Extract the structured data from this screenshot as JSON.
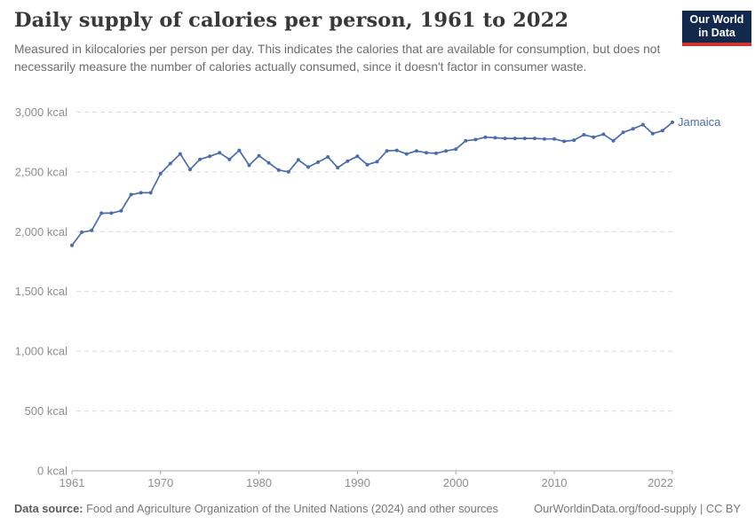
{
  "header": {
    "title": "Daily supply of calories per person, 1961 to 2022",
    "subtitle": "Measured in kilocalories per person per day. This indicates the calories that are available for consumption, but does not necessarily measure the number of calories actually consumed, since it doesn't factor in consumer waste."
  },
  "logo": {
    "line1": "Our World",
    "line2": "in Data"
  },
  "colors": {
    "series_line": "#4a6daa",
    "entity_label": "#4d6dab",
    "logo_navy": "#12294B",
    "logo_red": "#D0342C",
    "gridline": "#dadada",
    "axis_line": "#a8a8a8",
    "axis_text": "#8f8f8f"
  },
  "chart_data": {
    "type": "line",
    "title": "Daily supply of calories per person, 1961 to 2022",
    "xlabel": "",
    "ylabel": "",
    "unit": "kcal",
    "grid": true,
    "legend_position": "line-end-label",
    "xlim": [
      1961,
      2022
    ],
    "ylim": [
      0,
      3000
    ],
    "xtick_values": [
      1961,
      1970,
      1980,
      1990,
      2000,
      2010,
      2022
    ],
    "xtick_labels": [
      "1961",
      "1970",
      "1980",
      "1990",
      "2000",
      "2010",
      "2022"
    ],
    "ytick_values": [
      0,
      500,
      1000,
      1500,
      2000,
      2500,
      3000
    ],
    "ytick_labels": [
      "0 kcal",
      "500 kcal",
      "1,000 kcal",
      "1,500 kcal",
      "2,000 kcal",
      "2,500 kcal",
      "3,000 kcal"
    ],
    "series": [
      {
        "name": "Jamaica",
        "years": [
          1961,
          1962,
          1963,
          1964,
          1965,
          1966,
          1967,
          1968,
          1969,
          1970,
          1971,
          1972,
          1973,
          1974,
          1975,
          1976,
          1977,
          1978,
          1979,
          1980,
          1981,
          1982,
          1983,
          1984,
          1985,
          1986,
          1987,
          1988,
          1989,
          1990,
          1991,
          1992,
          1993,
          1994,
          1995,
          1996,
          1997,
          1998,
          1999,
          2000,
          2001,
          2002,
          2003,
          2004,
          2005,
          2006,
          2007,
          2008,
          2009,
          2010,
          2011,
          2012,
          2013,
          2014,
          2015,
          2016,
          2017,
          2018,
          2019,
          2020,
          2021,
          2022
        ],
        "values": [
          1885,
          1995,
          2010,
          2155,
          2155,
          2175,
          2310,
          2325,
          2325,
          2485,
          2570,
          2650,
          2520,
          2605,
          2630,
          2660,
          2605,
          2680,
          2555,
          2635,
          2575,
          2515,
          2500,
          2600,
          2540,
          2580,
          2625,
          2535,
          2590,
          2630,
          2560,
          2585,
          2675,
          2680,
          2650,
          2675,
          2660,
          2655,
          2675,
          2690,
          2760,
          2770,
          2790,
          2785,
          2780,
          2780,
          2780,
          2780,
          2775,
          2775,
          2755,
          2765,
          2810,
          2790,
          2815,
          2760,
          2830,
          2860,
          2895,
          2820,
          2845,
          2915
        ]
      }
    ]
  },
  "footer": {
    "source_label": "Data source:",
    "source_text": " Food and Agriculture Organization of the United Nations (2024) and other sources",
    "url": "OurWorldinData.org/food-supply",
    "separator": " | ",
    "license": "CC BY"
  }
}
